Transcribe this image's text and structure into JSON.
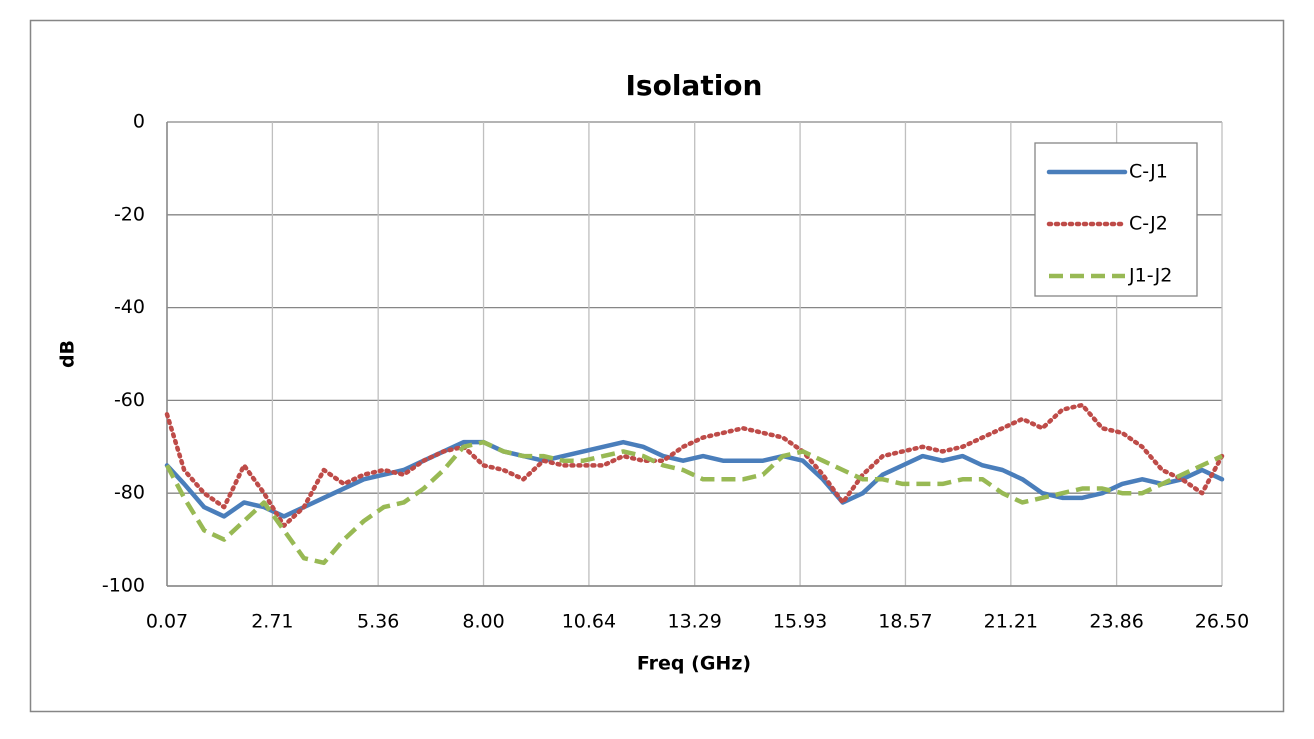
{
  "chart_data": {
    "type": "line",
    "title": "Isolation",
    "x_label": "Freq (GHz)",
    "y_label": "dB",
    "x": [
      0.07,
      0.5,
      1,
      1.5,
      2,
      2.5,
      3,
      3.5,
      4,
      4.5,
      5,
      5.5,
      6,
      6.5,
      7,
      7.5,
      8,
      8.5,
      9,
      9.5,
      10,
      10.5,
      11,
      11.5,
      12,
      12.5,
      13,
      13.5,
      14,
      14.5,
      15,
      15.5,
      16,
      16.5,
      17,
      17.5,
      18,
      18.5,
      19,
      19.5,
      20,
      20.5,
      21,
      21.5,
      22,
      22.5,
      23,
      23.5,
      24,
      24.5,
      25,
      25.5,
      26,
      26.5
    ],
    "series": [
      {
        "name": "C-J1",
        "color": "#4a7ebb",
        "dash": "solid",
        "values": [
          -74,
          -78,
          -83,
          -85,
          -82,
          -83,
          -85,
          -83,
          -81,
          -79,
          -77,
          -76,
          -75,
          -73,
          -71,
          -69,
          -69,
          -71,
          -72,
          -73,
          -72,
          -71,
          -70,
          -69,
          -70,
          -72,
          -73,
          -72,
          -73,
          -73,
          -73,
          -72,
          -73,
          -77,
          -82,
          -80,
          -76,
          -74,
          -72,
          -73,
          -72,
          -74,
          -75,
          -77,
          -80,
          -81,
          -81,
          -80,
          -78,
          -77,
          -78,
          -77,
          -75,
          -77
        ]
      },
      {
        "name": "C-J2",
        "color": "#be4b48",
        "dash": "dotted",
        "values": [
          -63,
          -75,
          -80,
          -83,
          -74,
          -80,
          -87,
          -83,
          -75,
          -78,
          -76,
          -75,
          -76,
          -73,
          -71,
          -70,
          -74,
          -75,
          -77,
          -73,
          -74,
          -74,
          -74,
          -72,
          -73,
          -73,
          -70,
          -68,
          -67,
          -66,
          -67,
          -68,
          -71,
          -76,
          -82,
          -76,
          -72,
          -71,
          -70,
          -71,
          -70,
          -68,
          -66,
          -64,
          -66,
          -62,
          -61,
          -66,
          -67,
          -70,
          -75,
          -77,
          -80,
          -72
        ]
      },
      {
        "name": "J1-J2",
        "color": "#98b954",
        "dash": "dashed",
        "values": [
          -74,
          -81,
          -88,
          -90,
          -86,
          -82,
          -88,
          -94,
          -95,
          -90,
          -86,
          -83,
          -82,
          -79,
          -75,
          -70,
          -69,
          -71,
          -72,
          -72,
          -73,
          -73,
          -72,
          -71,
          -72,
          -74,
          -75,
          -77,
          -77,
          -77,
          -76,
          -72,
          -71,
          -73,
          -75,
          -77,
          -77,
          -78,
          -78,
          -78,
          -77,
          -77,
          -80,
          -82,
          -81,
          -80,
          -79,
          -79,
          -80,
          -80,
          -78,
          -76,
          -74,
          -72
        ]
      }
    ],
    "xlim": [
      0.07,
      26.5
    ],
    "xticks": [
      0.07,
      2.71,
      5.36,
      {
        "value": 8,
        "label": "8.00"
      },
      10.64,
      13.29,
      15.93,
      18.57,
      21.21,
      23.86,
      {
        "value": 26.5,
        "label": "26.50"
      }
    ],
    "ylim": [
      -100,
      0
    ],
    "yticks": [
      0,
      -20,
      -40,
      -60,
      -80,
      -100
    ],
    "grid": true,
    "legend": "top-right"
  }
}
